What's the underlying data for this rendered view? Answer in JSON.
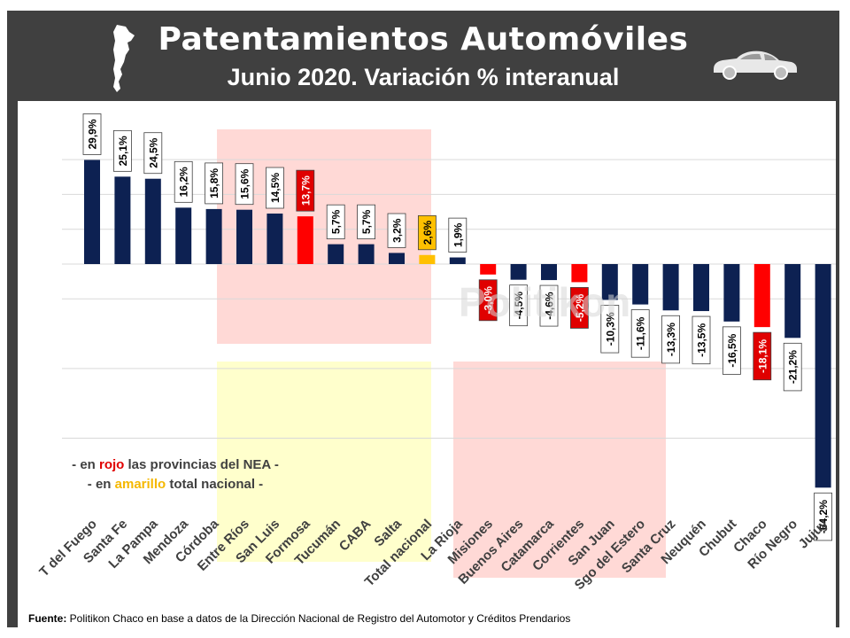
{
  "header": {
    "title": "Patentamientos Automóviles",
    "subtitle": "Junio 2020. Variación % interanual",
    "map_icon": "argentina-map-icon",
    "car_icon": "car-icon"
  },
  "watermark": "Politikon",
  "legend": {
    "line1": {
      "prefix": "- en ",
      "highlight": "rojo",
      "suffix": " las provincias del NEA -"
    },
    "line2": {
      "prefix": "- en ",
      "highlight": "amarillo",
      "suffix": " total nacional -"
    }
  },
  "footer": {
    "label": "Fuente:",
    "text": " Politikon Chaco en base a datos de la Dirección Nacional de Registro del Automotor y Créditos Prendarios"
  },
  "colors": {
    "default_bar": "#0d2152",
    "nea_bar": "#ff0000",
    "national_bar": "#ffc000",
    "highlight_red": "#ffd9d6",
    "highlight_yellow": "#ffffcc",
    "frame": "#404040"
  },
  "chart_data": {
    "type": "bar",
    "categories": [
      "T del Fuego",
      "Santa Fe",
      "La Pampa",
      "Mendoza",
      "Córdoba",
      "Entre Ríos",
      "San Luis",
      "Formosa",
      "Tucumán",
      "CABA",
      "Salta",
      "Total nacional",
      "La Rioja",
      "Misiones",
      "Buenos Aires",
      "Catamarca",
      "Corrientes",
      "San Juan",
      "Sgo del Estero",
      "Santa Cruz",
      "Neuquén",
      "Chubut",
      "Chaco",
      "Río Negro",
      "Jujuy"
    ],
    "values": [
      29.9,
      25.1,
      24.5,
      16.2,
      15.8,
      15.6,
      14.5,
      13.7,
      5.7,
      5.7,
      3.2,
      2.6,
      1.9,
      -3.0,
      -4.5,
      -4.6,
      -5.2,
      -10.3,
      -11.6,
      -13.3,
      -13.5,
      -16.5,
      -18.1,
      -21.2,
      -64.2
    ],
    "labels": [
      "29,9%",
      "25,1%",
      "24,5%",
      "16,2%",
      "15,8%",
      "15,6%",
      "14,5%",
      "13,7%",
      "5,7%",
      "5,7%",
      "3,2%",
      "2,6%",
      "1,9%",
      "-3,0%",
      "-4,5%",
      "-4,6%",
      "-5,2%",
      "-10,3%",
      "-11,6%",
      "-13,3%",
      "-13,5%",
      "-16,5%",
      "-18,1%",
      "-21,2%",
      "-64,2%"
    ],
    "groups": [
      "default",
      "default",
      "default",
      "default",
      "default",
      "default",
      "default",
      "nea",
      "default",
      "default",
      "default",
      "national",
      "default",
      "nea",
      "default",
      "default",
      "nea",
      "default",
      "default",
      "default",
      "default",
      "default",
      "nea",
      "default",
      "default"
    ],
    "ylim": [
      -64.2,
      30
    ],
    "grid": true,
    "xlabel": "",
    "ylabel": ""
  }
}
